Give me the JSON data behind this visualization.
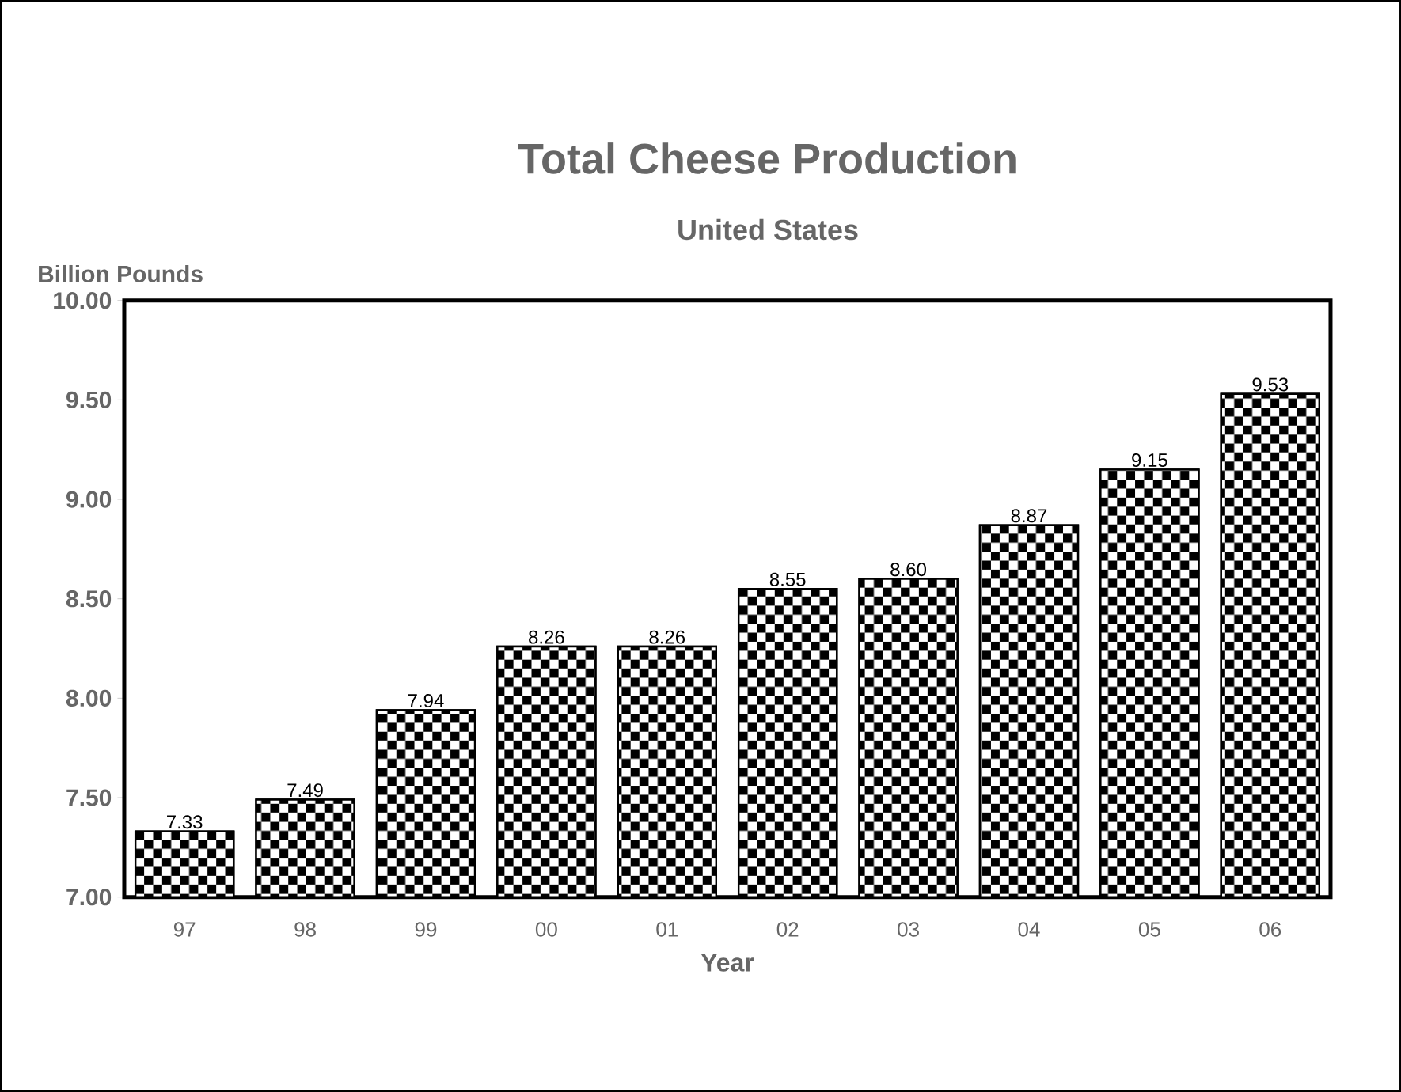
{
  "chart_data": {
    "type": "bar",
    "title": "Total Cheese Production",
    "subtitle": "United States",
    "ylabel": "Billion Pounds",
    "xlabel": "Year",
    "categories": [
      "97",
      "98",
      "99",
      "00",
      "01",
      "02",
      "03",
      "04",
      "05",
      "06"
    ],
    "values": [
      7.33,
      7.49,
      7.94,
      8.26,
      8.26,
      8.55,
      8.6,
      8.87,
      9.15,
      9.53
    ],
    "value_labels": [
      "7.33",
      "7.49",
      "7.94",
      "8.26",
      "8.26",
      "8.55",
      "8.60",
      "8.87",
      "9.15",
      "9.53"
    ],
    "color": "#000000",
    "ylim": [
      7,
      10
    ],
    "yticks": [
      {
        "value": 7,
        "label": "7.00"
      },
      {
        "value": 7.5,
        "label": "7.50"
      },
      {
        "value": 8,
        "label": "8.00"
      },
      {
        "value": 8.5,
        "label": "8.50"
      },
      {
        "value": 9,
        "label": "9.00"
      },
      {
        "value": 9.5,
        "label": "9.50"
      },
      {
        "value": 10,
        "label": "10.00"
      }
    ],
    "grid": false
  }
}
